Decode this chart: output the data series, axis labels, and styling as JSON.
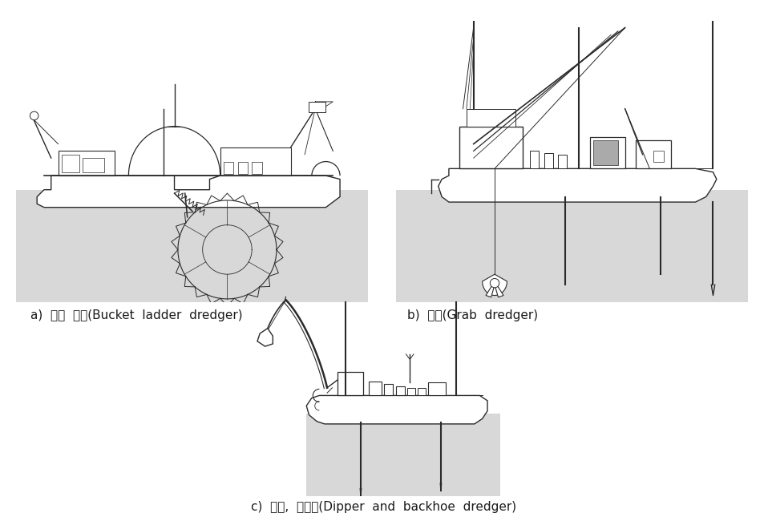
{
  "label_a": "a)  버켓  레더(Bucket  ladder  dredger)",
  "label_b": "b)  그랩(Grab  dredger)",
  "label_c": "c)  디퍼,  백호우(Dipper  and  backhoe  dredger)",
  "water_color": "#d8d8d8",
  "line_color": "#2a2a2a",
  "fig_bg": "#ffffff",
  "text_color": "#1a1a1a"
}
